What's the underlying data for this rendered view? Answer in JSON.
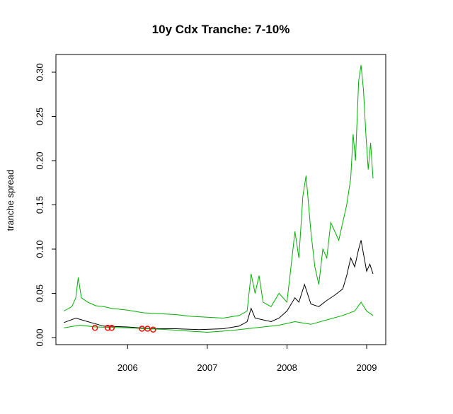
{
  "chart_data": {
    "type": "line",
    "title": "10y Cdx Tranche: 7-10%",
    "y_label": "tranche spread",
    "xlim": [
      2005.1,
      2009.24
    ],
    "xticks": [
      2006,
      2007,
      2008,
      2009
    ],
    "ylim": [
      -0.008,
      0.32
    ],
    "yticks": [
      {
        "value": 0,
        "label": "0.00"
      },
      0.05,
      {
        "value": 0.1,
        "label": "0.10"
      },
      0.15,
      {
        "value": 0.2,
        "label": "0.20"
      },
      0.25,
      {
        "value": 0.3,
        "label": "0.30"
      }
    ],
    "series": [
      {
        "color": "#00b000",
        "marker": "none",
        "x": [
          2005.2,
          2005.3,
          2005.35,
          2005.38,
          2005.42,
          2005.5,
          2005.6,
          2005.7,
          2005.8,
          2006.0,
          2006.2,
          2006.4,
          2006.6,
          2006.8,
          2007.0,
          2007.2,
          2007.4,
          2007.5,
          2007.55,
          2007.6,
          2007.65,
          2007.7,
          2007.8,
          2007.9,
          2008.0,
          2008.05,
          2008.1,
          2008.15,
          2008.2,
          2008.24,
          2008.3,
          2008.35,
          2008.4,
          2008.45,
          2008.5,
          2008.55,
          2008.6,
          2008.65,
          2008.7,
          2008.75,
          2008.8,
          2008.83,
          2008.86,
          2008.9,
          2008.93,
          2008.96,
          2008.99,
          2009.02,
          2009.05,
          2009.08
        ],
        "values": [
          0.03,
          0.035,
          0.045,
          0.068,
          0.045,
          0.04,
          0.036,
          0.035,
          0.033,
          0.031,
          0.028,
          0.027,
          0.026,
          0.024,
          0.023,
          0.022,
          0.025,
          0.03,
          0.072,
          0.05,
          0.07,
          0.04,
          0.035,
          0.05,
          0.04,
          0.08,
          0.12,
          0.09,
          0.16,
          0.183,
          0.12,
          0.08,
          0.06,
          0.1,
          0.09,
          0.13,
          0.12,
          0.11,
          0.13,
          0.15,
          0.18,
          0.23,
          0.2,
          0.29,
          0.308,
          0.28,
          0.23,
          0.19,
          0.22,
          0.18
        ]
      },
      {
        "color": "#000000",
        "marker": "none",
        "x": [
          2005.2,
          2005.35,
          2005.5,
          2005.7,
          2006.0,
          2006.3,
          2006.6,
          2006.9,
          2007.2,
          2007.4,
          2007.5,
          2007.55,
          2007.6,
          2007.7,
          2007.8,
          2007.9,
          2008.0,
          2008.1,
          2008.15,
          2008.22,
          2008.3,
          2008.4,
          2008.5,
          2008.6,
          2008.7,
          2008.75,
          2008.8,
          2008.85,
          2008.9,
          2008.93,
          2008.97,
          2009.0,
          2009.04,
          2009.08
        ],
        "values": [
          0.017,
          0.022,
          0.018,
          0.013,
          0.012,
          0.01,
          0.01,
          0.009,
          0.01,
          0.013,
          0.018,
          0.033,
          0.022,
          0.02,
          0.018,
          0.022,
          0.03,
          0.045,
          0.04,
          0.06,
          0.038,
          0.035,
          0.042,
          0.048,
          0.055,
          0.07,
          0.09,
          0.08,
          0.1,
          0.11,
          0.09,
          0.075,
          0.083,
          0.072
        ]
      },
      {
        "color": "#00b000",
        "marker": "none",
        "x": [
          2005.2,
          2005.4,
          2005.6,
          2006.0,
          2006.5,
          2007.0,
          2007.3,
          2007.5,
          2007.7,
          2007.9,
          2008.1,
          2008.3,
          2008.5,
          2008.7,
          2008.85,
          2008.93,
          2009.0,
          2009.08
        ],
        "values": [
          0.011,
          0.014,
          0.012,
          0.011,
          0.009,
          0.006,
          0.008,
          0.01,
          0.012,
          0.014,
          0.018,
          0.015,
          0.02,
          0.025,
          0.03,
          0.04,
          0.03,
          0.025
        ]
      },
      {
        "color": "#ff0000",
        "marker": "circle",
        "x": [
          2005.59,
          2005.75,
          2005.8,
          2006.18,
          2006.25,
          2006.32
        ],
        "values": [
          0.011,
          0.011,
          0.011,
          0.01,
          0.01,
          0.009
        ]
      }
    ]
  }
}
